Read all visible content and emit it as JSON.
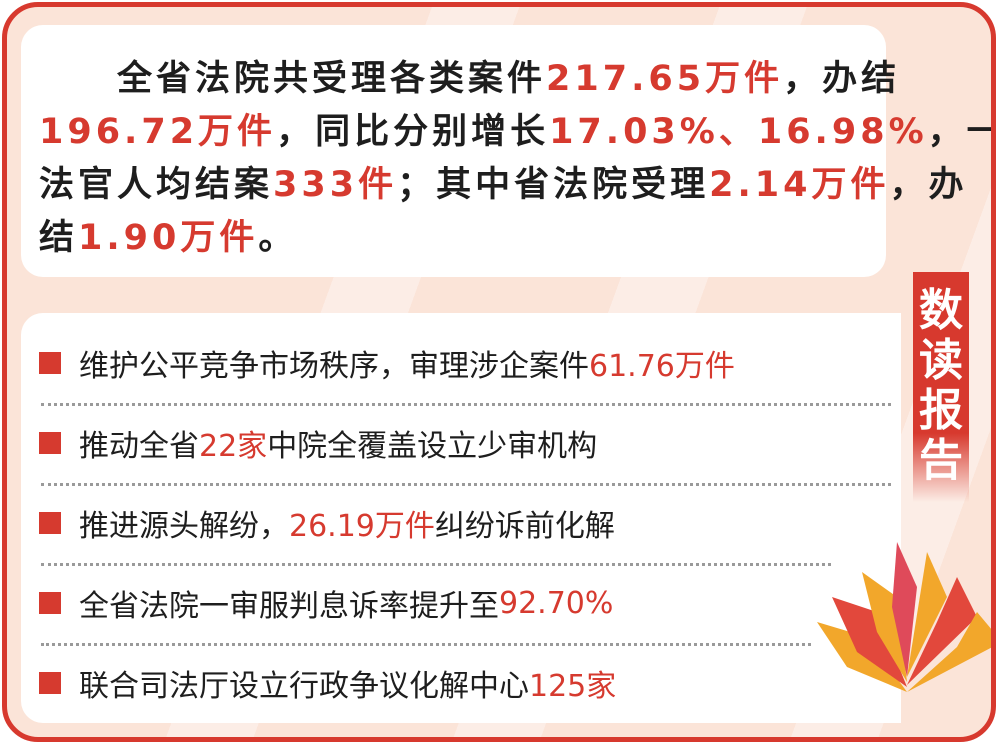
{
  "summary": {
    "lines": [
      [
        {
          "t": "　　全省法院共受理各类案件",
          "h": false
        },
        {
          "t": "217.65万件",
          "h": true
        },
        {
          "t": "，办结",
          "h": false
        }
      ],
      [
        {
          "t": "196.72万件",
          "h": true
        },
        {
          "t": "，同比分别增长",
          "h": false
        },
        {
          "t": "17.03%、16.98%",
          "h": true
        },
        {
          "t": "，一线",
          "h": false
        }
      ],
      [
        {
          "t": "法官人均结案",
          "h": false
        },
        {
          "t": "333件",
          "h": true
        },
        {
          "t": "；其中省法院受理",
          "h": false
        },
        {
          "t": "2.14万件",
          "h": true
        },
        {
          "t": "，办",
          "h": false
        }
      ],
      [
        {
          "t": "结",
          "h": false
        },
        {
          "t": "1.90万件",
          "h": true
        },
        {
          "t": "。",
          "h": false
        }
      ]
    ]
  },
  "highlights": [
    [
      {
        "t": "维护公平竞争市场秩序，审理涉企案件",
        "h": false
      },
      {
        "t": "61.76万件",
        "h": true
      }
    ],
    [
      {
        "t": "推动全省",
        "h": false
      },
      {
        "t": "22家",
        "h": true
      },
      {
        "t": "中院全覆盖设立少审机构",
        "h": false
      }
    ],
    [
      {
        "t": "推进源头解纷，",
        "h": false
      },
      {
        "t": "26.19万件",
        "h": true
      },
      {
        "t": "纠纷诉前化解",
        "h": false
      }
    ],
    [
      {
        "t": "全省法院一审服判息诉率提升至",
        "h": false
      },
      {
        "t": "92.70%",
        "h": true
      }
    ],
    [
      {
        "t": "联合司法厅设立行政争议化解中心",
        "h": false
      },
      {
        "t": "125家",
        "h": true
      }
    ]
  ],
  "badge": {
    "chars": [
      "数",
      "读",
      "报",
      "告"
    ]
  },
  "colors": {
    "accent": "#d63a2f",
    "background": "#fbe4d8",
    "book_yellow": "#f2a72b",
    "book_red": "#e2483c"
  },
  "icons": {
    "book": "open-book-icon",
    "bullet": "red-square-bullet"
  }
}
